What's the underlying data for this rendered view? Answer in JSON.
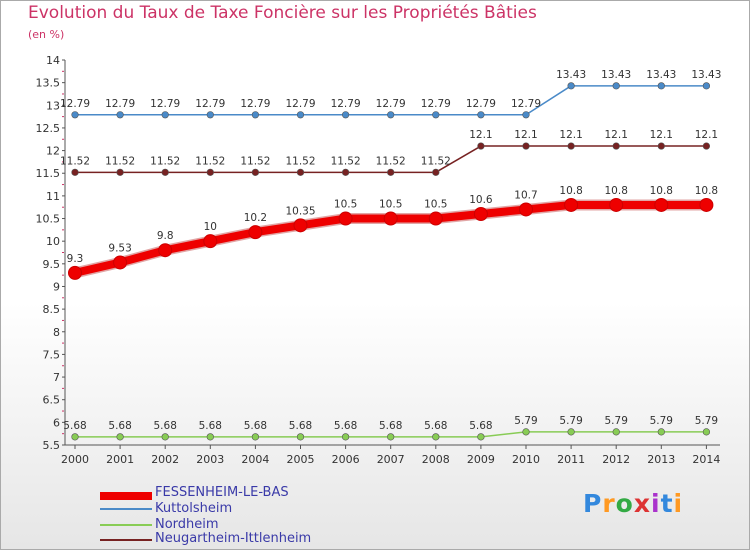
{
  "title": "Evolution du Taux de Taxe Foncière sur les Propriétés Bâties",
  "unit": "(en %)",
  "logo_text": "Proxiti",
  "colors": {
    "title": "#cc3366",
    "FESSENHEIM-LE-BAS": "#ee0000",
    "Kuttolsheim": "#4a8ac8",
    "Nordheim": "#88cc55",
    "Neugartheim-Ittlenheim": "#772222"
  },
  "chart_data": {
    "type": "line",
    "title": "Evolution du Taux de Taxe Foncière sur les Propriétés Bâties",
    "ylabel": "(en %)",
    "xlabel": "",
    "ylim": [
      5.5,
      14
    ],
    "yticks": [
      "5.5",
      "6",
      "6.5",
      "7",
      "7.5",
      "8",
      "8.5",
      "9",
      "9.5",
      "10",
      "10.5",
      "11",
      "11.5",
      "12",
      "12.5",
      "13",
      "13.5",
      "14"
    ],
    "grid": false,
    "legend_position": "bottom-left",
    "x": [
      "2000",
      "2001",
      "2002",
      "2003",
      "2004",
      "2005",
      "2006",
      "2007",
      "2008",
      "2009",
      "2010",
      "2011",
      "2012",
      "2013",
      "2014"
    ],
    "series": [
      {
        "name": "Kuttolsheim",
        "values": [
          12.79,
          12.79,
          12.79,
          12.79,
          12.79,
          12.79,
          12.79,
          12.79,
          12.79,
          12.79,
          12.79,
          13.43,
          13.43,
          13.43,
          13.43
        ],
        "labels": [
          "12.79",
          "12.79",
          "12.79",
          "12.79",
          "12.79",
          "12.79",
          "12.79",
          "12.79",
          "12.79",
          "12.79",
          "12.79",
          "13.43",
          "13.43",
          "13.43",
          "13.43"
        ]
      },
      {
        "name": "Neugartheim-Ittlenheim",
        "values": [
          11.52,
          11.52,
          11.52,
          11.52,
          11.52,
          11.52,
          11.52,
          11.52,
          11.52,
          12.1,
          12.1,
          12.1,
          12.1,
          12.1,
          12.1
        ],
        "labels": [
          "11.52",
          "11.52",
          "11.52",
          "11.52",
          "11.52",
          "11.52",
          "11.52",
          "11.52",
          "11.52",
          "12.1",
          "12.1",
          "12.1",
          "12.1",
          "12.1",
          "12.1"
        ]
      },
      {
        "name": "FESSENHEIM-LE-BAS",
        "values": [
          9.3,
          9.53,
          9.8,
          10,
          10.2,
          10.35,
          10.5,
          10.5,
          10.5,
          10.6,
          10.7,
          10.8,
          10.8,
          10.8,
          10.8
        ],
        "labels": [
          "9.3",
          "9.53",
          "9.8",
          "10",
          "10.2",
          "10.35",
          "10.5",
          "10.5",
          "10.5",
          "10.6",
          "10.7",
          "10.8",
          "10.8",
          "10.8",
          "10.8"
        ]
      },
      {
        "name": "Nordheim",
        "values": [
          5.68,
          5.68,
          5.68,
          5.68,
          5.68,
          5.68,
          5.68,
          5.68,
          5.68,
          5.68,
          5.79,
          5.79,
          5.79,
          5.79,
          5.79
        ],
        "labels": [
          "5.68",
          "5.68",
          "5.68",
          "5.68",
          "5.68",
          "5.68",
          "5.68",
          "5.68",
          "5.68",
          "5.68",
          "5.79",
          "5.79",
          "5.79",
          "5.79",
          "5.79"
        ]
      }
    ],
    "legend": [
      "FESSENHEIM-LE-BAS",
      "Kuttolsheim",
      "Nordheim",
      "Neugartheim-Ittlenheim"
    ]
  }
}
